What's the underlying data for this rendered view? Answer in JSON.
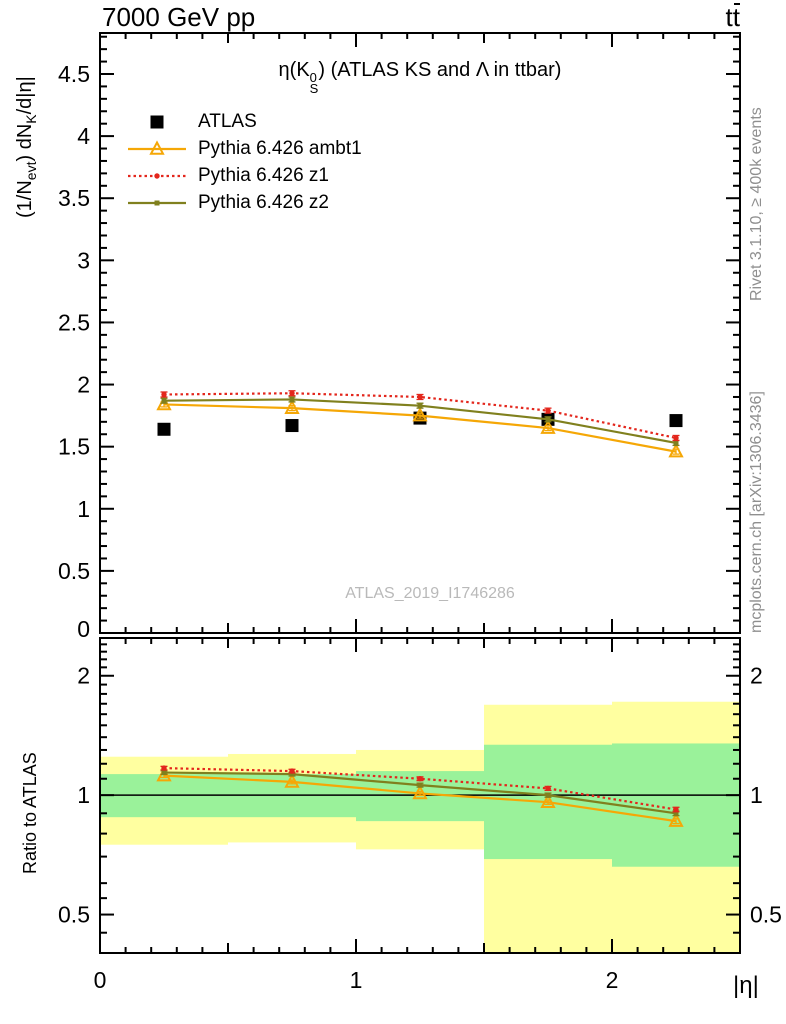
{
  "header": {
    "title_left": "7000 GeV pp",
    "title_right_main": "t",
    "title_right_bar": "t"
  },
  "plot_title": {
    "pre": "η(K",
    "sup": "0",
    "sub": "S",
    "post": ") (ATLAS KS and Λ in ttbar)"
  },
  "watermark": "ATLAS_2019_I1746286",
  "side_notes": {
    "top": "Rivet 3.1.10, ≥ 400k events",
    "bottom": "mcplots.cern.ch [arXiv:1306.3436]"
  },
  "axes": {
    "main_y_label": {
      "p1": "(1/N",
      "s1": "evt",
      "p2": ") dN",
      "s2": "K",
      "p3": "/d|η|"
    },
    "ratio_y_label": "Ratio to ATLAS",
    "x_label": "|η|"
  },
  "legend": {
    "entries": [
      {
        "series": "ATLAS",
        "label": "ATLAS"
      },
      {
        "series": "Pythia 6.426 ambt1",
        "label": "Pythia 6.426 ambt1"
      },
      {
        "series": "Pythia 6.426 z1",
        "label": "Pythia 6.426 z1"
      },
      {
        "series": "Pythia 6.426 z2",
        "label": "Pythia 6.426 z2"
      }
    ]
  },
  "chart_data": {
    "type": "line",
    "title": "η(K0S) (ATLAS KS and Λ in ttbar)",
    "xlabel": "|η|",
    "x": [
      0.25,
      0.75,
      1.25,
      1.75,
      2.25
    ],
    "bin_width": 0.5,
    "xlim": [
      0,
      2.5
    ],
    "xticks": [
      {
        "v": 0,
        "label": "0"
      },
      {
        "v": 1,
        "label": "1"
      },
      {
        "v": 2,
        "label": "2"
      }
    ],
    "main_axis": {
      "ylim": [
        0,
        4.83
      ],
      "minor_step": 0.1,
      "yticks": [
        {
          "v": 0,
          "label": "0"
        },
        {
          "v": 0.5,
          "label": "0.5"
        },
        {
          "v": 1,
          "label": "1"
        },
        {
          "v": 1.5,
          "label": "1.5"
        },
        {
          "v": 2,
          "label": "2"
        },
        {
          "v": 2.5,
          "label": "2.5"
        },
        {
          "v": 3,
          "label": "3"
        },
        {
          "v": 3.5,
          "label": "3.5"
        },
        {
          "v": 4,
          "label": "4"
        },
        {
          "v": 4.5,
          "label": "4.5"
        }
      ]
    },
    "ratio_axis": {
      "scale": "log",
      "ylim": [
        0.4,
        2.49
      ],
      "baseline": 1,
      "yticks": [
        {
          "v": 0.5,
          "label": "0.5"
        },
        {
          "v": 1,
          "label": "1"
        },
        {
          "v": 2,
          "label": "2"
        }
      ],
      "minor_ticks": [
        0.45,
        0.55,
        0.6,
        0.7,
        0.8,
        0.9,
        1.1,
        1.2,
        1.3,
        1.4,
        1.5,
        1.6,
        1.7,
        1.8,
        1.9,
        2.1,
        2.2,
        2.3,
        2.4
      ]
    },
    "series": [
      {
        "name": "ATLAS",
        "color": "#000000",
        "marker": "square",
        "line": "none",
        "values": [
          1.64,
          1.67,
          1.73,
          1.72,
          1.71
        ],
        "err": 0.02,
        "ratio": null,
        "ratio_err": 0
      },
      {
        "name": "Pythia 6.426 ambt1",
        "color": "#f5a706",
        "marker": "triangle-open",
        "line": "solid",
        "values": [
          1.84,
          1.81,
          1.75,
          1.65,
          1.46
        ],
        "err": 0.02,
        "ratio": [
          1.12,
          1.08,
          1.01,
          0.96,
          0.86
        ],
        "ratio_err": 0.012
      },
      {
        "name": "Pythia 6.426 z2",
        "color": "#80801e",
        "marker": "square-small",
        "line": "solid",
        "values": [
          1.87,
          1.88,
          1.83,
          1.72,
          1.53
        ],
        "err": 0.02,
        "ratio": [
          1.14,
          1.13,
          1.06,
          1.0,
          0.9
        ],
        "ratio_err": 0.012
      },
      {
        "name": "Pythia 6.426 z1",
        "color": "#e3261c",
        "marker": "circle-small",
        "line": "dotted",
        "values": [
          1.92,
          1.93,
          1.9,
          1.79,
          1.57
        ],
        "err": 0.02,
        "ratio": [
          1.17,
          1.15,
          1.1,
          1.04,
          0.92
        ],
        "ratio_err": 0.012
      }
    ],
    "bands": {
      "edges": [
        0,
        0.5,
        1.0,
        1.5,
        2.0,
        2.5
      ],
      "outer": {
        "color": "#ffffa0",
        "lo": [
          0.75,
          0.76,
          0.73,
          0.4,
          0.4
        ],
        "hi": [
          1.25,
          1.27,
          1.3,
          1.69,
          1.72
        ]
      },
      "inner": {
        "color": "#9af29a",
        "lo": [
          0.88,
          0.88,
          0.86,
          0.69,
          0.66
        ],
        "hi": [
          1.13,
          1.13,
          1.15,
          1.34,
          1.35
        ]
      }
    }
  }
}
